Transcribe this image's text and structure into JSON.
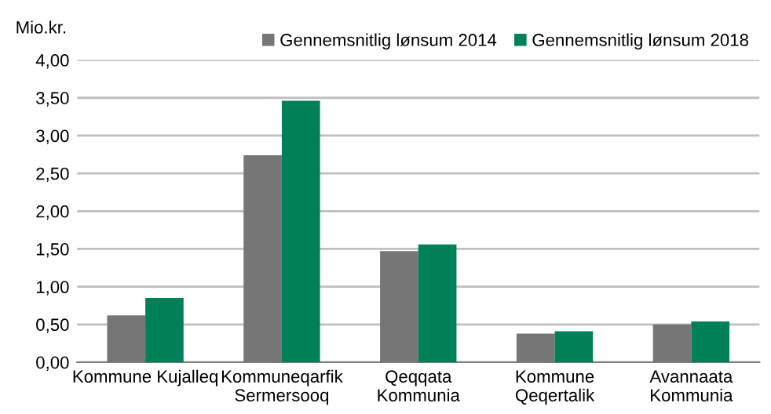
{
  "chart_data": {
    "type": "bar",
    "ylabel": "Mio.kr.",
    "categories": [
      "Kommune Kujalleq",
      "Kommuneqarfik\nSermersooq",
      "Qeqqata\nKommunia",
      "Kommune\nQeqertalik",
      "Avannaata\nKommunia"
    ],
    "series": [
      {
        "name": "Gennemsnitlig lønsum 2014",
        "color": "#767676",
        "values": [
          0.62,
          2.74,
          1.47,
          0.38,
          0.5
        ]
      },
      {
        "name": "Gennemsnitlig lønsum 2018",
        "color": "#008058",
        "values": [
          0.85,
          3.46,
          1.56,
          0.41,
          0.54
        ]
      }
    ],
    "ylim": [
      0,
      4
    ],
    "yticks": [
      {
        "value": 0,
        "label": "0,00"
      },
      {
        "value": 0.5,
        "label": "0,50"
      },
      {
        "value": 1,
        "label": "1,00"
      },
      {
        "value": 1.5,
        "label": "1,50"
      },
      {
        "value": 2,
        "label": "2,00"
      },
      {
        "value": 2.5,
        "label": "2,50"
      },
      {
        "value": 3,
        "label": "3,00"
      },
      {
        "value": 3.5,
        "label": "3,50"
      },
      {
        "value": 4,
        "label": "4,00"
      }
    ],
    "grid": "y",
    "legend": "top right"
  }
}
